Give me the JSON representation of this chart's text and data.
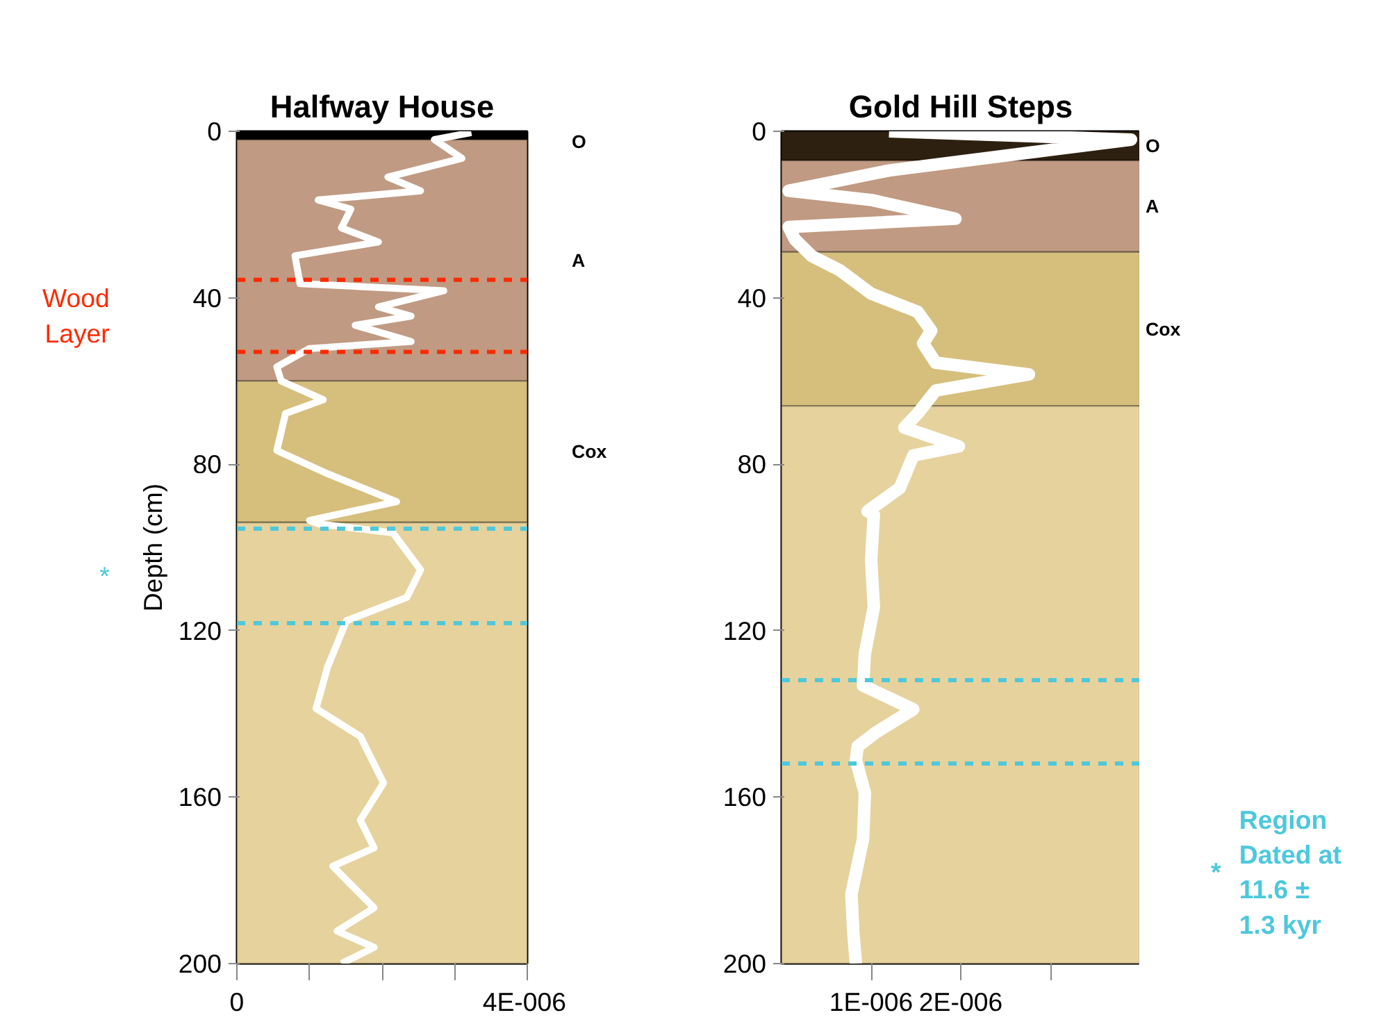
{
  "chart_data": [
    {
      "type": "line",
      "title": "Halfway House",
      "ylabel": "Depth (cm)",
      "xlim": [
        0,
        4e-06
      ],
      "ylim": [
        200,
        0
      ],
      "xticks": [
        0,
        {
          "value": 1e-06,
          "label": null
        },
        {
          "value": 2e-06,
          "label": null
        },
        {
          "value": 3e-06,
          "label": null
        },
        {
          "value": 4e-06,
          "label": "4E-006"
        }
      ],
      "yticks": [
        0,
        40,
        80,
        120,
        160,
        200
      ],
      "marker": "none",
      "line_style": "solid",
      "series": [
        {
          "color": "#ffffff",
          "x": [
            3.23e-06,
            2.72e-06,
            3.1e-06,
            2.08e-06,
            2.53e-06,
            1.12e-06,
            1.57e-06,
            1.44e-06,
            1.95e-06,
            8e-07,
            8.7e-07,
            2.85e-06,
            1.95e-06,
            2.4e-06,
            1.63e-06,
            2.4e-06,
            1e-06,
            5.5e-07,
            6.1e-07,
            1.19e-06,
            6.7e-07,
            5.5e-07,
            1.25e-06,
            2.2e-06,
            1e-06,
            1.12e-06,
            2.15e-06,
            2.53e-06,
            2.34e-06,
            1.51e-06,
            1.25e-06,
            1.09e-06,
            1.7e-06,
            2.02e-06,
            1.7e-06,
            1.89e-06,
            1.32e-06,
            1.89e-06,
            1.38e-06,
            1.89e-06,
            1.44e-06
          ],
          "values": [
            0.3,
            2,
            6.5,
            11,
            14.3,
            16.5,
            18.7,
            23.2,
            26.6,
            29.9,
            36.6,
            38.3,
            42.2,
            44.4,
            46.6,
            50.5,
            52.2,
            56.6,
            60,
            64.5,
            67.8,
            76.7,
            82.3,
            89,
            93.5,
            94.3,
            96.5,
            105.4,
            112,
            117.6,
            128.7,
            138.7,
            145.4,
            156.6,
            165.5,
            172.2,
            176.6,
            186.6,
            192.2,
            196.1,
            200
          ]
        }
      ],
      "bands": [
        {
          "axis": "y",
          "from": 0,
          "to": 2,
          "label": "O",
          "color": "#000000"
        },
        {
          "axis": "y",
          "from": 2,
          "to": 60,
          "label": "A",
          "color": "#c09a82"
        },
        {
          "axis": "y",
          "from": 60,
          "to": 94,
          "label": "Cox",
          "color": "#d6bf7d"
        },
        {
          "axis": "y",
          "from": 94,
          "to": 200,
          "label": null,
          "color": "#e6d29c"
        }
      ],
      "ref_lines": [
        {
          "axis": "y",
          "value": 35.7,
          "label": null,
          "color": "#ff2a00",
          "line_style": "dashed"
        },
        {
          "axis": "y",
          "value": 53,
          "label": null,
          "color": "#ff2a00",
          "line_style": "dashed"
        },
        {
          "axis": "y",
          "value": 95.5,
          "label": null,
          "color": "#4dc8dc",
          "line_style": "dashed"
        },
        {
          "axis": "y",
          "value": 118.2,
          "label": null,
          "color": "#4dc8dc",
          "line_style": "dashed"
        }
      ],
      "annotations": [
        "Wood Layer",
        "*"
      ]
    },
    {
      "type": "line",
      "title": "Gold Hill Steps",
      "xlim": [
        0,
        4e-06
      ],
      "ylim": [
        200,
        0
      ],
      "xticks": [
        {
          "value": 1e-06,
          "label": "1E-006"
        },
        {
          "value": 2e-06,
          "label": "2E-006"
        },
        {
          "value": 3e-06,
          "label": null
        }
      ],
      "yticks": [
        0,
        40,
        80,
        120,
        160,
        200
      ],
      "marker": "none",
      "line_style": "solid",
      "series": [
        {
          "color": "#ffffff",
          "x": [
            1.2e-06,
            3.9e-06,
            1.2e-06,
            8e-08,
            1e-06,
            1.94e-06,
            8e-08,
            1.5e-07,
            3.4e-07,
            6.5e-07,
            1e-06,
            1.52e-06,
            1.67e-06,
            1.58e-06,
            1.72e-06,
            2.76e-06,
            1.72e-06,
            1.52e-06,
            1.37e-06,
            1.98e-06,
            1.47e-06,
            1.32e-06,
            9.6e-07,
            1.03e-06,
            1e-06,
            1.03e-06,
            9.3e-07,
            9.1e-07,
            1.47e-06,
            1.05e-06,
            8.5e-07,
            8.3e-07,
            9.3e-07,
            9.1e-07,
            7.8e-07,
            8e-07,
            8.3e-07
          ],
          "values": [
            0,
            2,
            9.4,
            14.3,
            16.5,
            21,
            23,
            26,
            30,
            33.4,
            39,
            43.4,
            47.9,
            51,
            55.6,
            58.4,
            62.3,
            67.8,
            71.2,
            75.7,
            77.9,
            85.7,
            91.3,
            92.2,
            103,
            114.4,
            125.5,
            133.2,
            138.9,
            144.5,
            147.8,
            151.1,
            158.9,
            170,
            183.3,
            192.3,
            200
          ]
        }
      ],
      "bands": [
        {
          "axis": "y",
          "from": 0,
          "to": 7,
          "label": "O",
          "color": "#2e2010"
        },
        {
          "axis": "y",
          "from": 7,
          "to": 29,
          "label": "A",
          "color": "#c09a82"
        },
        {
          "axis": "y",
          "from": 29,
          "to": 66,
          "label": "Cox",
          "color": "#d6bf7d"
        },
        {
          "axis": "y",
          "from": 66,
          "to": 200,
          "label": null,
          "color": "#e6d29c"
        }
      ],
      "ref_lines": [
        {
          "axis": "y",
          "value": 131.9,
          "label": null,
          "color": "#4dc8dc",
          "line_style": "dashed"
        },
        {
          "axis": "y",
          "value": 151.9,
          "label": null,
          "color": "#4dc8dc",
          "line_style": "dashed"
        }
      ],
      "annotations": [
        "*",
        "Region Dated at 11.6 ± 1.3 kyr"
      ]
    }
  ]
}
